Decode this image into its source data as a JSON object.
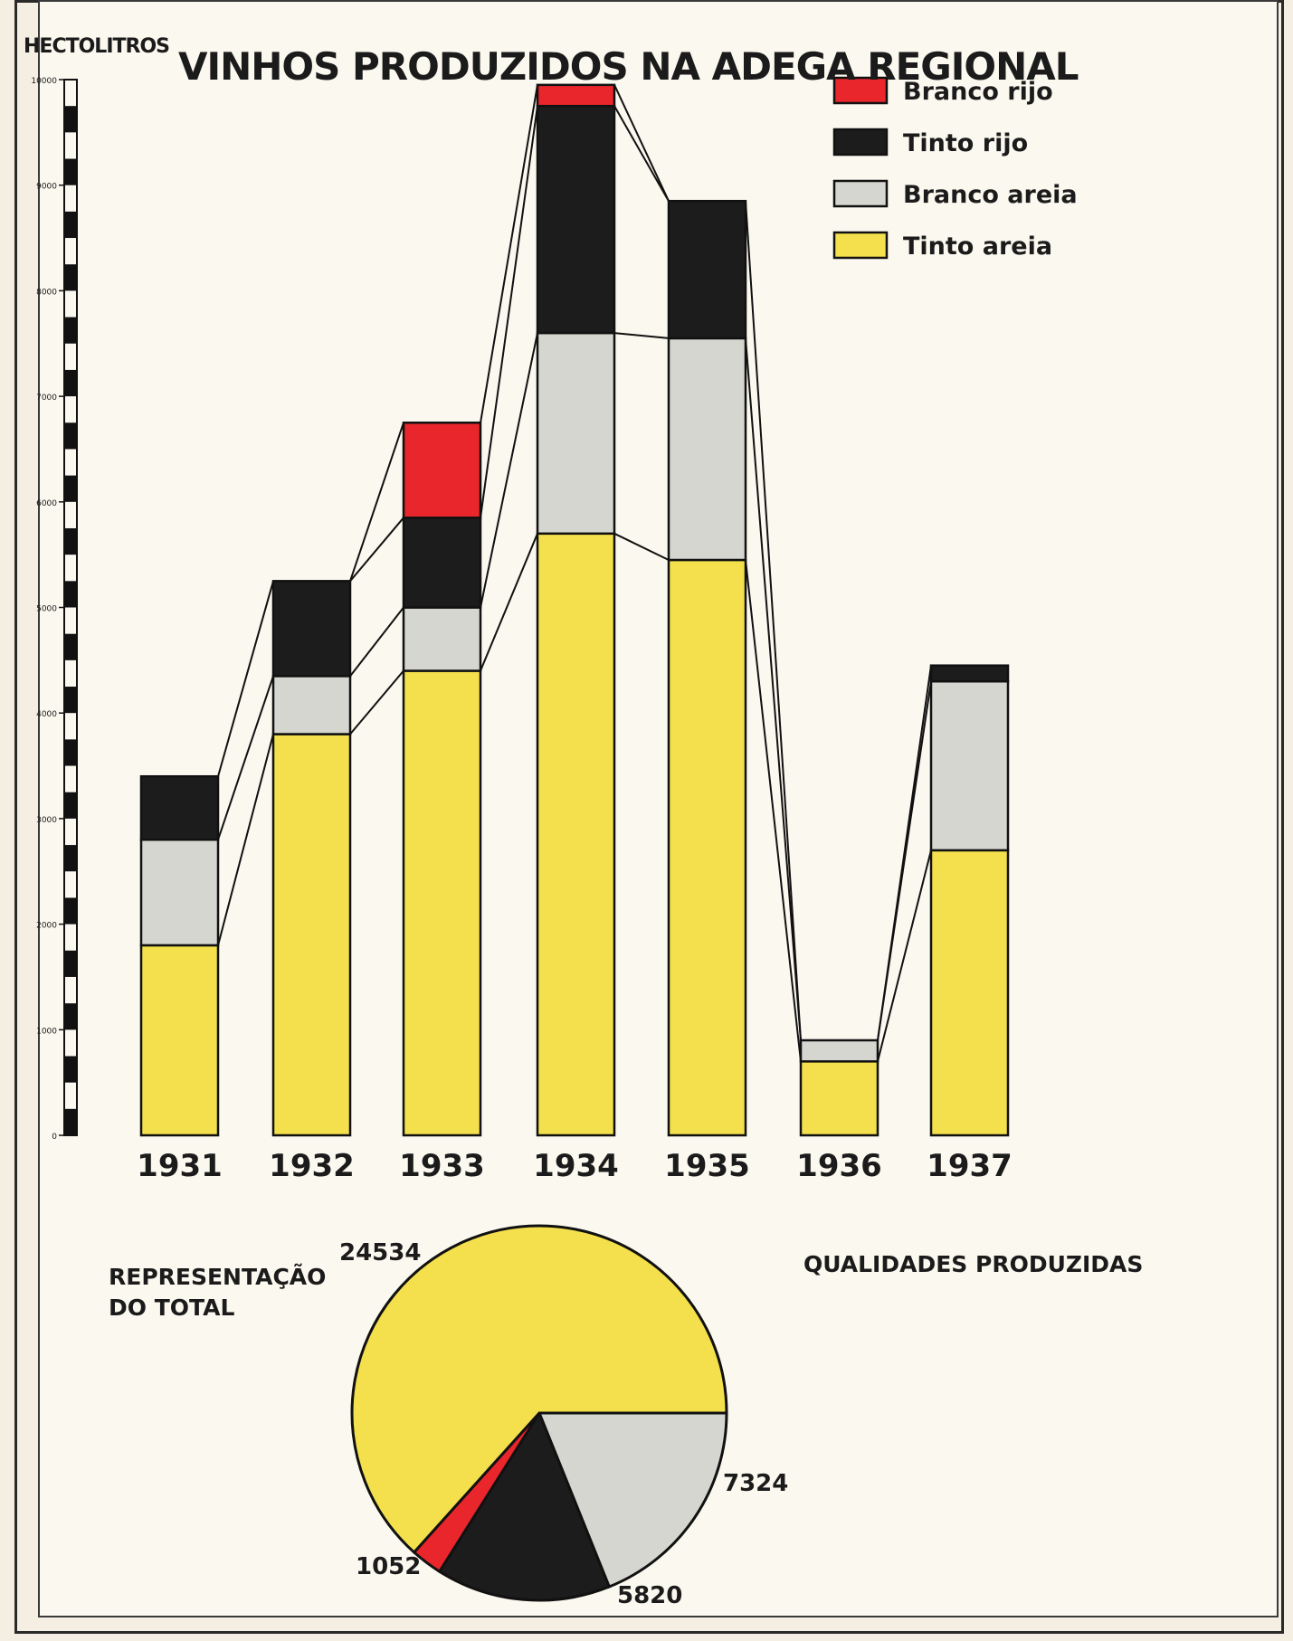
{
  "chart_data": [
    {
      "type": "bar",
      "stacked": true,
      "title": "VINHOS PRODUZIDOS NA ADEGA REGIONAL",
      "ylabel": "HECTOLITROS",
      "ylim": [
        0,
        10000
      ],
      "yticks": [
        {
          "value": 0,
          "label": "0"
        },
        {
          "value": 1000,
          "label": "1000"
        },
        {
          "value": 2000,
          "label": "2000"
        },
        {
          "value": 3000,
          "label": "3000"
        },
        {
          "value": 4000,
          "label": "4000"
        },
        {
          "value": 5000,
          "label": "5000"
        },
        {
          "value": 6000,
          "label": "6000"
        },
        {
          "value": 7000,
          "label": "7000"
        },
        {
          "value": 8000,
          "label": "8000"
        },
        {
          "value": 9000,
          "label": "9000"
        },
        {
          "value": 10000,
          "label": "10000"
        }
      ],
      "categories": [
        "1931",
        "1932",
        "1933",
        "1934",
        "1935",
        "1936",
        "1937"
      ],
      "legend_position": "top-right",
      "series": [
        {
          "name": "Tinto areia",
          "color": "#f4e04d",
          "values": [
            1800,
            3800,
            4400,
            5700,
            5450,
            700,
            2700
          ]
        },
        {
          "name": "Branco areia",
          "color": "#d6d6d0",
          "values": [
            1000,
            550,
            600,
            1900,
            2100,
            200,
            1600
          ]
        },
        {
          "name": "Tinto rijo",
          "color": "#1c1c1c",
          "values": [
            600,
            900,
            850,
            2150,
            1300,
            0,
            150
          ]
        },
        {
          "name": "Branco rijo",
          "color": "#e8262b",
          "values": [
            0,
            0,
            900,
            200,
            0,
            0,
            0
          ]
        }
      ],
      "legend_order": [
        "Branco rijo",
        "Tinto rijo",
        "Branco areia",
        "Tinto areia"
      ]
    },
    {
      "type": "pie",
      "title": "QUALIDADES PRODUZIDAS",
      "subtitle": "REPRESENTAÇÃO DO TOTAL",
      "slices": [
        {
          "name": "Tinto areia",
          "value": 24534,
          "label": "24534",
          "color": "#f4e04d"
        },
        {
          "name": "Branco areia",
          "value": 7324,
          "label": "7324",
          "color": "#d6d6d0"
        },
        {
          "name": "Tinto rijo",
          "value": 5820,
          "label": "5820",
          "color": "#1c1c1c"
        },
        {
          "name": "Branco rijo",
          "value": 1052,
          "label": "1052",
          "color": "#e8262b"
        }
      ]
    }
  ]
}
